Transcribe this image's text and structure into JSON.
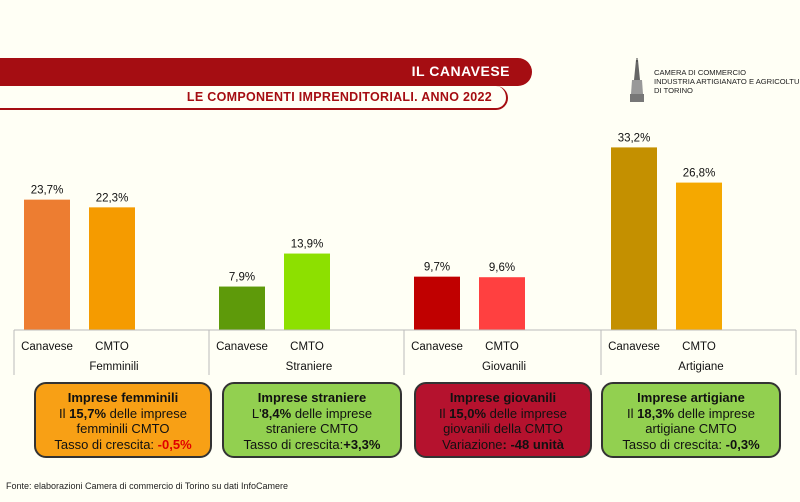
{
  "header": {
    "title": "IL CANAVESE",
    "subtitle": "LE COMPONENTI IMPRENDITORIALI. ANNO 2022"
  },
  "logo": {
    "line1": "CAMERA DI COMMERCIO",
    "line2": "INDUSTRIA ARTIGIANATO E AGRICOLTURA",
    "line3": "DI TORINO"
  },
  "chart_data": {
    "type": "bar",
    "title": "LE COMPONENTI IMPRENDITORIALI. ANNO 2022",
    "ylabel": "",
    "xlabel": "",
    "ylim": [
      0,
      35
    ],
    "grid": false,
    "groups": [
      {
        "name": "Femminili",
        "bars": [
          {
            "label": "Canavese",
            "value": 23.7,
            "text": "23,7%",
            "color": "#ed7d31"
          },
          {
            "label": "CMTO",
            "value": 22.3,
            "text": "22,3%",
            "color": "#f59b00"
          }
        ]
      },
      {
        "name": "Straniere",
        "bars": [
          {
            "label": "Canavese",
            "value": 7.9,
            "text": "7,9%",
            "color": "#5e9a0a"
          },
          {
            "label": "CMTO",
            "value": 13.9,
            "text": "13,9%",
            "color": "#8de000"
          }
        ]
      },
      {
        "name": "Giovanili",
        "bars": [
          {
            "label": "Canavese",
            "value": 9.7,
            "text": "9,7%",
            "color": "#c00000"
          },
          {
            "label": "CMTO",
            "value": 9.6,
            "text": "9,6%",
            "color": "#ff4040"
          }
        ]
      },
      {
        "name": "Artigiane",
        "bars": [
          {
            "label": "Canavese",
            "value": 33.2,
            "text": "33,2%",
            "color": "#c49000"
          },
          {
            "label": "CMTO",
            "value": 26.8,
            "text": "26,8%",
            "color": "#f5a800"
          }
        ]
      }
    ]
  },
  "boxes": [
    {
      "title": "Imprese femminili",
      "l1a": "Il ",
      "l1b": "15,7%",
      "l1c": " delle imprese",
      "l2": "femminili CMTO",
      "l3a": "Tasso di crescita: ",
      "l3b": "-0,5%",
      "bg": "#f8a015",
      "fg": "#111",
      "accent": "#e00000"
    },
    {
      "title": "Imprese straniere",
      "l1a": "L'",
      "l1b": "8,4%",
      "l1c": " delle imprese",
      "l2": "straniere CMTO",
      "l3a": "Tasso di crescita:",
      "l3b": "+3,3%",
      "bg": "#92d050",
      "fg": "#111",
      "accent": "#111"
    },
    {
      "title": "Imprese giovanili",
      "l1a": "Il ",
      "l1b": "15,0%",
      "l1c": " delle imprese",
      "l2": "giovanili della CMTO",
      "l3a": "Variazione",
      "l3b": ": -48 unità",
      "bg": "#b5122e",
      "fg": "#111",
      "accent": "#111"
    },
    {
      "title": "Imprese artigiane",
      "l1a": "Il ",
      "l1b": "18,3%",
      "l1c": " delle imprese",
      "l2": "artigiane CMTO",
      "l3a": "Tasso di crescita: ",
      "l3b": "-0,3%",
      "bg": "#92d050",
      "fg": "#111",
      "accent": "#111"
    }
  ],
  "source": "Fonte: elaborazioni Camera di commercio di Torino su dati InfoCamere"
}
